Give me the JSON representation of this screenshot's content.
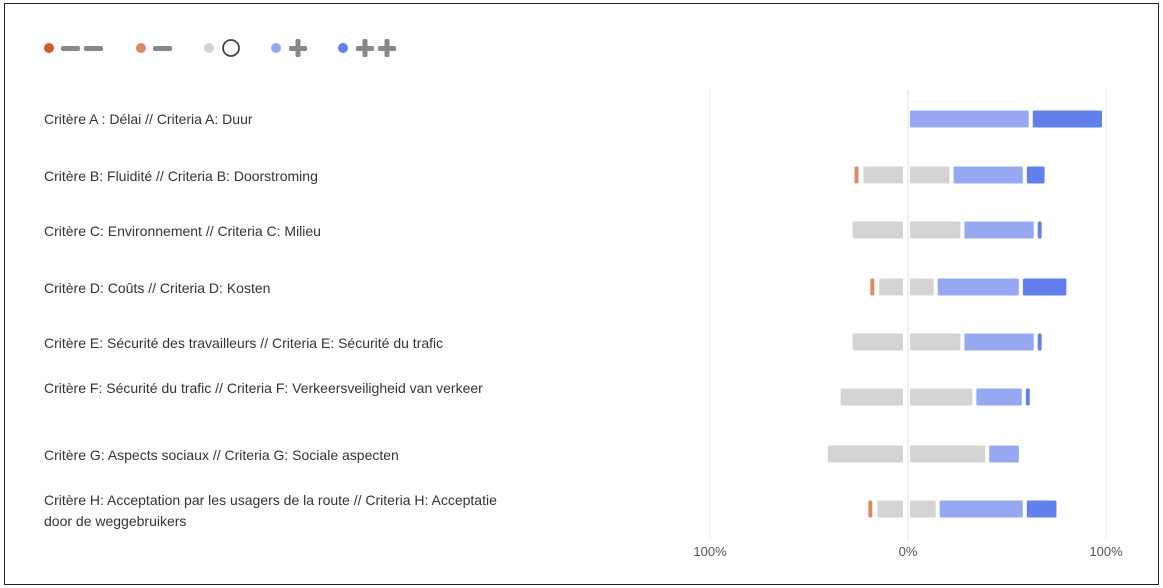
{
  "chart_data": {
    "type": "bar",
    "stacked": true,
    "orientation": "horizontal",
    "layout": "diverging",
    "legend": {
      "position": "top-left",
      "entries": [
        {
          "key": "very_negative",
          "icon": "minus-minus-icon",
          "color": "#d05a2c"
        },
        {
          "key": "negative",
          "icon": "minus-icon",
          "color": "#e0875f"
        },
        {
          "key": "neutral",
          "icon": "circle-icon",
          "color": "#d4d4d4"
        },
        {
          "key": "positive",
          "icon": "plus-icon",
          "color": "#97a8f2"
        },
        {
          "key": "very_positive",
          "icon": "plus-plus-icon",
          "color": "#6180ec"
        }
      ]
    },
    "categories": [
      "Critère A : Délai // Criteria A: Duur",
      "Critère B: Fluidité // Criteria B: Doorstroming",
      "Critère C: Environnement // Criteria C: Milieu",
      "Critère D: Coûts // Criteria D: Kosten",
      "Critère E: Sécurité des travailleurs // Criteria E: Sécurité du trafic",
      "Critère F: Sécurité du trafic // Criteria F: Verkeersveiligheid van verkeer",
      "Critère G: Aspects sociaux // Criteria G: Sociale aspecten",
      "Critère H: Acceptation par les usagers de la route // Criteria H: Acceptatie door de weggebruikers"
    ],
    "series": [
      {
        "key": "very_negative",
        "color": "#d05a2c",
        "values": [
          0,
          0,
          0,
          0,
          0,
          0,
          0,
          0
        ]
      },
      {
        "key": "negative",
        "color": "#e0875f",
        "values": [
          0,
          4,
          0,
          4,
          0,
          0,
          0,
          4
        ]
      },
      {
        "key": "neutral",
        "color": "#d4d4d4",
        "values": [
          0,
          44,
          55,
          28,
          55,
          67,
          80,
          30
        ]
      },
      {
        "key": "positive",
        "color": "#97a8f2",
        "values": [
          62,
          37,
          37,
          43,
          37,
          25,
          17,
          44
        ]
      },
      {
        "key": "very_positive",
        "color": "#6180ec",
        "values": [
          37,
          11,
          4,
          24,
          4,
          4,
          0,
          17
        ]
      }
    ],
    "xaxis": {
      "ticks": [
        "100%",
        "0%",
        "100%"
      ],
      "range": [
        -100,
        100
      ]
    },
    "grid": true
  }
}
